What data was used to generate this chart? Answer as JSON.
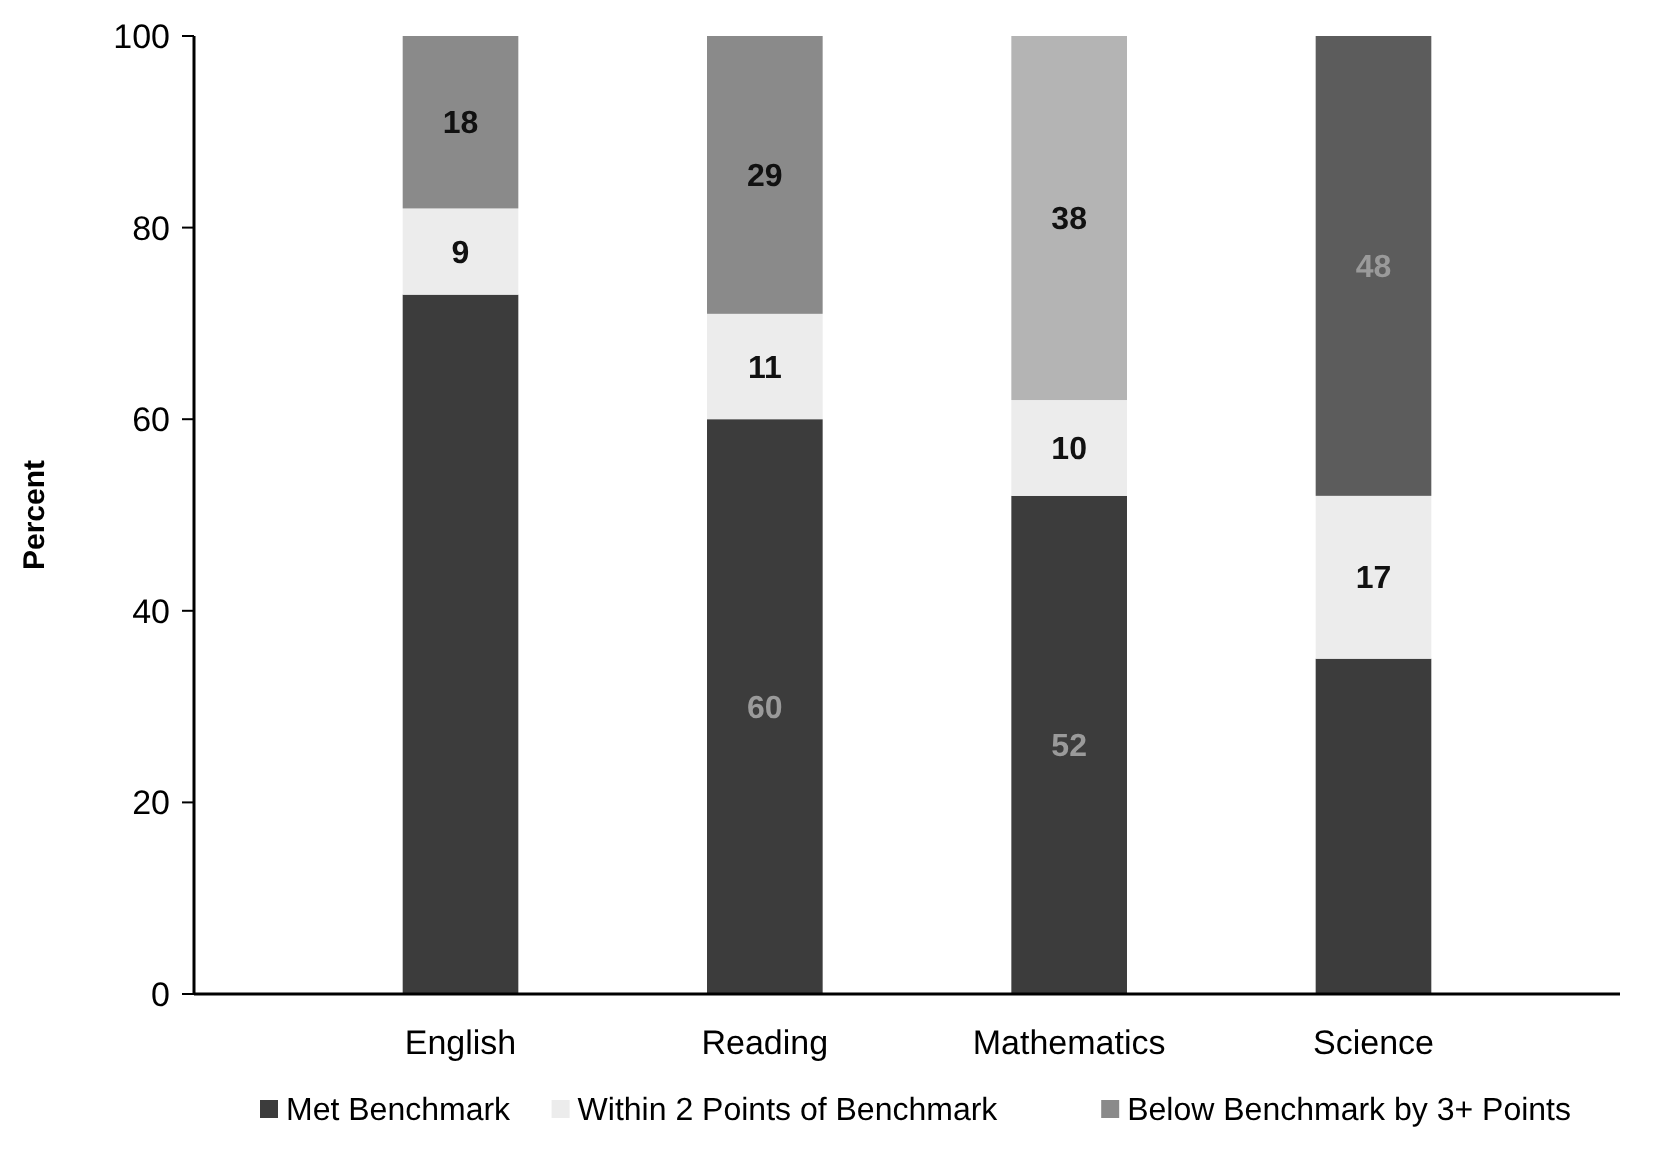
{
  "chart_data": {
    "type": "bar",
    "stacked": true,
    "ylabel": "Percent",
    "categories": [
      "English",
      "Reading",
      "Mathematics",
      "Science"
    ],
    "ylim": [
      0,
      100
    ],
    "yticks": [
      0,
      20,
      40,
      60,
      80,
      100
    ],
    "grid": false,
    "legend": "bottom",
    "series": [
      {
        "name": "Met Benchmark",
        "color": "#3c3c3c",
        "values": [
          73,
          60,
          52,
          35
        ],
        "value_labels": [
          null,
          "60",
          "52",
          null
        ]
      },
      {
        "name": "Within 2 Points of Benchmark",
        "color": "#ececec",
        "values": [
          9,
          11,
          10,
          17
        ],
        "value_labels": [
          "9",
          "11",
          "10",
          "17"
        ]
      },
      {
        "name": "Below Benchmark by 3+ Points",
        "color": "#8a8a8a",
        "colors": [
          "#8a8a8a",
          "#8a8a8a",
          "#b4b4b4",
          "#5c5c5c"
        ],
        "values": [
          18,
          29,
          38,
          48
        ],
        "value_labels": [
          "18",
          "29",
          "38",
          "48"
        ]
      }
    ]
  }
}
